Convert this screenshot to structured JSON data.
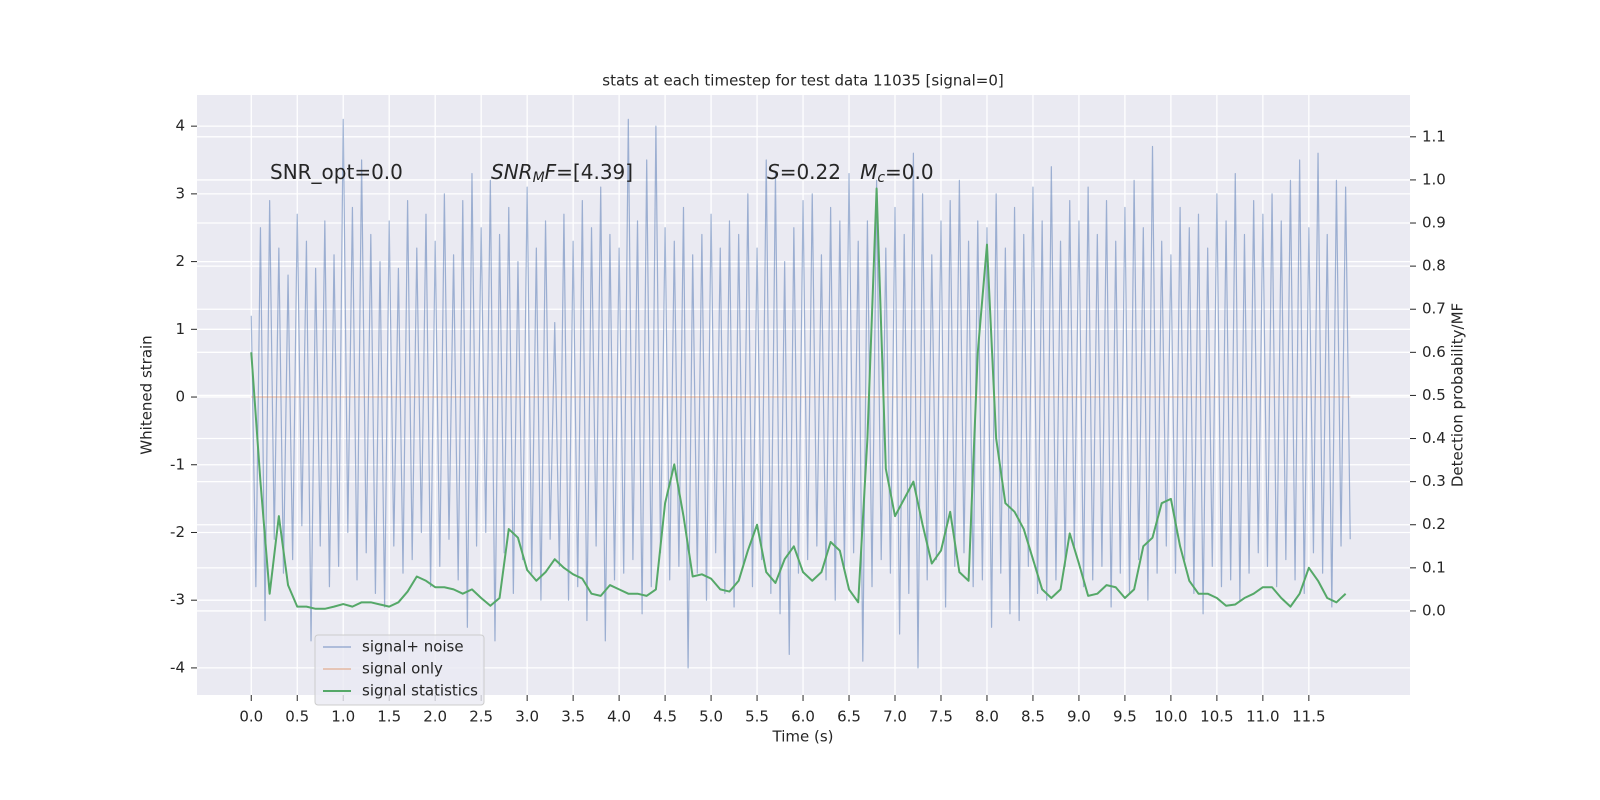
{
  "chart_data": {
    "type": "line",
    "title": "stats at each timestep for test data 11035 [signal=0]",
    "xlabel": "Time (s)",
    "ylabel": "Whitened strain",
    "y2label": "Detection probability/MF",
    "annotations": [
      {
        "parts": [
          {
            "text": "SNR_opt=0.0",
            "style": "normal"
          }
        ]
      },
      {
        "parts": [
          {
            "text": "SNR",
            "style": "italic"
          },
          {
            "text": "M",
            "style": "sub"
          },
          {
            "text": "F",
            "style": "italic"
          },
          {
            "text": "=[4.39]",
            "style": "normal"
          }
        ]
      },
      {
        "parts": [
          {
            "text": "S",
            "style": "italic"
          },
          {
            "text": "=0.22   ",
            "style": "normal"
          },
          {
            "text": "M",
            "style": "italic"
          },
          {
            "text": "c",
            "style": "sub"
          },
          {
            "text": "=0.0",
            "style": "normal"
          }
        ]
      }
    ],
    "xlim": [
      -0.59,
      12.6
    ],
    "ylim": [
      -4.4,
      4.46
    ],
    "y2lim": [
      -0.195,
      1.197
    ],
    "xticks": [
      {
        "value": 0,
        "label": "0.0"
      },
      0.5,
      {
        "value": 1,
        "label": "1.0"
      },
      1.5,
      {
        "value": 2,
        "label": "2.0"
      },
      2.5,
      {
        "value": 3,
        "label": "3.0"
      },
      3.5,
      {
        "value": 4,
        "label": "4.0"
      },
      4.5,
      {
        "value": 5,
        "label": "5.0"
      },
      5.5,
      {
        "value": 6,
        "label": "6.0"
      },
      6.5,
      {
        "value": 7,
        "label": "7.0"
      },
      7.5,
      {
        "value": 8,
        "label": "8.0"
      },
      8.5,
      {
        "value": 9,
        "label": "9.0"
      },
      9.5,
      {
        "value": 10,
        "label": "10.0"
      },
      10.5,
      {
        "value": 11,
        "label": "11.0"
      },
      11.5
    ],
    "yticks": [
      -4,
      -3,
      -2,
      -1,
      0,
      1,
      2,
      3,
      4
    ],
    "y2ticks": [
      {
        "value": 0,
        "label": "0.0"
      },
      0.1,
      0.2,
      0.3,
      0.4,
      0.5,
      0.6,
      0.7,
      0.8,
      0.9,
      {
        "value": 1,
        "label": "1.0"
      },
      1.1
    ],
    "grid": true,
    "legend": "lower left",
    "series": [
      {
        "name": "signal+ noise",
        "color": "#4c72b0",
        "opacity": 0.5,
        "x": [
          0,
          0.05,
          0.1,
          0.15,
          0.2,
          0.25,
          0.3,
          0.35,
          0.4,
          0.45,
          0.5,
          0.55,
          0.6,
          0.65,
          0.7,
          0.75,
          0.8,
          0.85,
          0.9,
          0.95,
          1,
          1.05,
          1.1,
          1.15,
          1.2,
          1.25,
          1.3,
          1.35,
          1.4,
          1.45,
          1.5,
          1.55,
          1.6,
          1.65,
          1.7,
          1.75,
          1.8,
          1.85,
          1.9,
          1.95,
          2,
          2.05,
          2.1,
          2.15,
          2.2,
          2.25,
          2.3,
          2.35,
          2.4,
          2.45,
          2.5,
          2.55,
          2.6,
          2.65,
          2.7,
          2.75,
          2.8,
          2.85,
          2.9,
          2.95,
          3,
          3.05,
          3.1,
          3.15,
          3.2,
          3.25,
          3.3,
          3.35,
          3.4,
          3.45,
          3.5,
          3.55,
          3.6,
          3.65,
          3.7,
          3.75,
          3.8,
          3.85,
          3.9,
          3.95,
          4,
          4.05,
          4.1,
          4.15,
          4.2,
          4.25,
          4.3,
          4.35,
          4.4,
          4.45,
          4.5,
          4.55,
          4.6,
          4.65,
          4.7,
          4.75,
          4.8,
          4.85,
          4.9,
          4.95,
          5,
          5.05,
          5.1,
          5.15,
          5.2,
          5.25,
          5.3,
          5.35,
          5.4,
          5.45,
          5.5,
          5.55,
          5.6,
          5.65,
          5.7,
          5.75,
          5.8,
          5.85,
          5.9,
          5.95,
          6,
          6.05,
          6.1,
          6.15,
          6.2,
          6.25,
          6.3,
          6.35,
          6.4,
          6.45,
          6.5,
          6.55,
          6.6,
          6.65,
          6.7,
          6.75,
          6.8,
          6.85,
          6.9,
          6.95,
          7,
          7.05,
          7.1,
          7.15,
          7.2,
          7.25,
          7.3,
          7.35,
          7.4,
          7.45,
          7.5,
          7.55,
          7.6,
          7.65,
          7.7,
          7.75,
          7.8,
          7.85,
          7.9,
          7.95,
          8,
          8.05,
          8.1,
          8.15,
          8.2,
          8.25,
          8.3,
          8.35,
          8.4,
          8.45,
          8.5,
          8.55,
          8.6,
          8.65,
          8.7,
          8.75,
          8.8,
          8.85,
          8.9,
          8.95,
          9,
          9.05,
          9.1,
          9.15,
          9.2,
          9.25,
          9.3,
          9.35,
          9.4,
          9.45,
          9.5,
          9.55,
          9.6,
          9.65,
          9.7,
          9.75,
          9.8,
          9.85,
          9.9,
          9.95,
          10,
          10.05,
          10.1,
          10.15,
          10.2,
          10.25,
          10.3,
          10.35,
          10.4,
          10.45,
          10.5,
          10.55,
          10.6,
          10.65,
          10.7,
          10.75,
          10.8,
          10.85,
          10.9,
          10.95,
          11,
          11.05,
          11.1,
          11.15,
          11.2,
          11.25,
          11.3,
          11.35,
          11.4,
          11.45,
          11.5,
          11.55,
          11.6,
          11.65,
          11.7,
          11.75,
          11.8,
          11.85,
          11.9,
          11.95
        ],
        "values": [
          1.2,
          -2.8,
          2.5,
          -3.3,
          2.9,
          -2.1,
          2.2,
          -2.6,
          1.8,
          -2.4,
          2.7,
          -1.9,
          2.3,
          -3.6,
          1.9,
          -2.2,
          2.6,
          -2.8,
          2.1,
          -2.5,
          4.1,
          -2.0,
          2.8,
          -2.7,
          3.5,
          -2.3,
          2.4,
          -2.9,
          2.0,
          -3.1,
          2.6,
          -2.2,
          1.9,
          -2.6,
          2.9,
          -2.4,
          2.2,
          -2.0,
          2.7,
          -2.8,
          2.3,
          -2.5,
          3.0,
          -2.1,
          2.1,
          -2.7,
          2.9,
          -3.4,
          3.3,
          -2.2,
          2.5,
          -2.0,
          3.2,
          -3.6,
          2.4,
          -2.3,
          2.8,
          -2.9,
          2.0,
          -2.4,
          3.1,
          -2.6,
          2.2,
          -3.0,
          2.6,
          -2.1,
          1.1,
          -2.5,
          2.7,
          -3.0,
          2.3,
          -2.8,
          2.9,
          -3.3,
          2.5,
          -2.2,
          3.1,
          -3.6,
          2.4,
          -2.7,
          2.2,
          -2.6,
          4.1,
          -2.4,
          2.6,
          -3.2,
          3.5,
          -2.8,
          4.0,
          -2.3,
          2.5,
          -2.7,
          2.3,
          -2.5,
          2.8,
          -4.0,
          2.1,
          -2.6,
          2.4,
          -3.0,
          2.7,
          -2.3,
          2.2,
          -2.9,
          2.6,
          -3.1,
          2.4,
          -2.5,
          3.0,
          -2.8,
          2.2,
          -2.4,
          3.5,
          -2.9,
          3.3,
          -3.2,
          2.0,
          -3.8,
          2.5,
          -2.6,
          2.9,
          -2.4,
          3.0,
          -2.2,
          2.1,
          -2.7,
          2.8,
          -3.0,
          2.6,
          -2.5,
          3.3,
          -2.3,
          2.3,
          -3.9,
          2.6,
          -2.8,
          3.2,
          -2.4,
          2.2,
          -2.6,
          2.8,
          -3.5,
          2.4,
          -2.9,
          3.6,
          -4.0,
          3.0,
          -2.7,
          2.1,
          -2.4,
          2.6,
          -3.1,
          2.9,
          -2.5,
          3.2,
          -2.3,
          2.3,
          -2.8,
          2.6,
          -2.7,
          2.5,
          -3.4,
          3.0,
          -2.6,
          2.2,
          -3.2,
          2.8,
          -3.3,
          2.4,
          -2.5,
          3.1,
          -2.9,
          2.6,
          -3.0,
          3.4,
          -2.7,
          2.3,
          -2.5,
          2.9,
          -2.2,
          2.6,
          -2.8,
          3.1,
          -2.7,
          2.4,
          -2.5,
          2.9,
          -3.1,
          2.3,
          -2.6,
          2.8,
          -2.9,
          3.2,
          -2.4,
          2.5,
          -3.0,
          3.7,
          -2.6,
          2.3,
          -2.2,
          2.1,
          -2.6,
          2.8,
          -2.4,
          2.5,
          -2.9,
          2.7,
          -3.2,
          2.2,
          -2.5,
          3.0,
          -2.8,
          2.6,
          -2.7,
          3.3,
          -3.0,
          2.4,
          -2.6,
          2.9,
          -2.3,
          2.7,
          -2.5,
          3.0,
          -2.8,
          2.6,
          -2.4,
          3.2,
          -2.7,
          3.5,
          -2.9,
          2.5,
          -2.3,
          3.6,
          -2.6,
          2.4,
          -3.1,
          3.2,
          -2.2,
          3.1,
          -2.1
        ]
      },
      {
        "name": "signal only",
        "color": "#dd8452",
        "opacity": 0.5,
        "x": [
          0,
          11.95
        ],
        "values": [
          0,
          0
        ]
      },
      {
        "name": "signal statistics",
        "color": "#55a868",
        "opacity": 1,
        "axis": "y2",
        "x": [
          0,
          0.1,
          0.2,
          0.3,
          0.4,
          0.5,
          0.6,
          0.7,
          0.8,
          0.9,
          1,
          1.1,
          1.2,
          1.3,
          1.4,
          1.5,
          1.6,
          1.7,
          1.8,
          1.9,
          2,
          2.1,
          2.2,
          2.3,
          2.4,
          2.5,
          2.6,
          2.7,
          2.8,
          2.9,
          3,
          3.1,
          3.2,
          3.3,
          3.4,
          3.5,
          3.6,
          3.7,
          3.8,
          3.9,
          4,
          4.1,
          4.2,
          4.3,
          4.4,
          4.5,
          4.6,
          4.7,
          4.8,
          4.9,
          5,
          5.1,
          5.2,
          5.3,
          5.4,
          5.5,
          5.6,
          5.7,
          5.8,
          5.9,
          6,
          6.1,
          6.2,
          6.3,
          6.4,
          6.5,
          6.6,
          6.7,
          6.8,
          6.9,
          7,
          7.1,
          7.2,
          7.3,
          7.4,
          7.5,
          7.6,
          7.7,
          7.8,
          7.9,
          8,
          8.1,
          8.2,
          8.3,
          8.4,
          8.5,
          8.6,
          8.7,
          8.8,
          8.9,
          9,
          9.1,
          9.2,
          9.3,
          9.4,
          9.5,
          9.6,
          9.7,
          9.8,
          9.9,
          10,
          10.1,
          10.2,
          10.3,
          10.4,
          10.5,
          10.6,
          10.7,
          10.8,
          10.9,
          11,
          11.1,
          11.2,
          11.3,
          11.4,
          11.5,
          11.6,
          11.7,
          11.8,
          11.9
        ],
        "values": [
          0.6,
          0.3,
          0.04,
          0.22,
          0.06,
          0.01,
          0.01,
          0.005,
          0.005,
          0.01,
          0.016,
          0.01,
          0.02,
          0.02,
          0.015,
          0.01,
          0.02,
          0.045,
          0.08,
          0.07,
          0.055,
          0.055,
          0.05,
          0.04,
          0.05,
          0.03,
          0.012,
          0.03,
          0.19,
          0.17,
          0.095,
          0.07,
          0.09,
          0.12,
          0.1,
          0.085,
          0.075,
          0.04,
          0.035,
          0.06,
          0.05,
          0.04,
          0.04,
          0.035,
          0.05,
          0.25,
          0.34,
          0.22,
          0.08,
          0.085,
          0.075,
          0.05,
          0.045,
          0.07,
          0.14,
          0.2,
          0.09,
          0.065,
          0.12,
          0.15,
          0.09,
          0.07,
          0.09,
          0.16,
          0.14,
          0.05,
          0.02,
          0.4,
          0.98,
          0.33,
          0.22,
          0.26,
          0.3,
          0.2,
          0.11,
          0.14,
          0.23,
          0.09,
          0.07,
          0.6,
          0.85,
          0.4,
          0.25,
          0.23,
          0.19,
          0.12,
          0.05,
          0.03,
          0.05,
          0.18,
          0.11,
          0.035,
          0.04,
          0.06,
          0.055,
          0.03,
          0.05,
          0.15,
          0.17,
          0.25,
          0.26,
          0.15,
          0.07,
          0.04,
          0.04,
          0.03,
          0.012,
          0.015,
          0.03,
          0.04,
          0.055,
          0.055,
          0.03,
          0.01,
          0.04,
          0.1,
          0.07,
          0.03,
          0.02,
          0.04
        ]
      }
    ]
  }
}
